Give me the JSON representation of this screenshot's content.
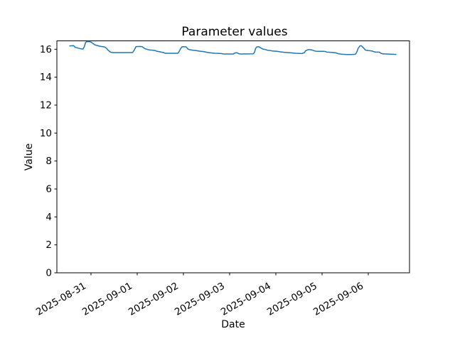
{
  "chart_data": {
    "type": "line",
    "title": "Parameter values",
    "xlabel": "Date",
    "ylabel": "Value",
    "background_color": "#ffffff",
    "line_color": "#1f77b4",
    "axis_color": "#000000",
    "grid": false,
    "x_unit": "days since 2025-08-30 00:00",
    "xlim": [
      0.262,
      7.892
    ],
    "ylim": [
      0,
      16.6
    ],
    "yticks": [
      0,
      2,
      4,
      6,
      8,
      10,
      12,
      14,
      16
    ],
    "xticks": [
      {
        "day": 1,
        "label": "2025-08-31"
      },
      {
        "day": 2,
        "label": "2025-09-01"
      },
      {
        "day": 3,
        "label": "2025-09-02"
      },
      {
        "day": 4,
        "label": "2025-09-03"
      },
      {
        "day": 5,
        "label": "2025-09-04"
      },
      {
        "day": 6,
        "label": "2025-09-05"
      },
      {
        "day": 7,
        "label": "2025-09-06"
      }
    ],
    "x_tick_rotation_deg": 30,
    "series": [
      {
        "name": "Parameter values",
        "color": "#1f77b4",
        "points": [
          [
            0.54,
            16.24
          ],
          [
            0.62,
            16.26
          ],
          [
            0.66,
            16.13
          ],
          [
            0.72,
            16.08
          ],
          [
            0.78,
            16.03
          ],
          [
            0.83,
            16.01
          ],
          [
            0.86,
            16.22
          ],
          [
            0.88,
            16.47
          ],
          [
            0.9,
            16.54
          ],
          [
            0.95,
            16.55
          ],
          [
            1.0,
            16.51
          ],
          [
            1.03,
            16.44
          ],
          [
            1.06,
            16.37
          ],
          [
            1.08,
            16.32
          ],
          [
            1.13,
            16.27
          ],
          [
            1.19,
            16.22
          ],
          [
            1.24,
            16.19
          ],
          [
            1.29,
            16.17
          ],
          [
            1.31,
            16.13
          ],
          [
            1.34,
            16.05
          ],
          [
            1.36,
            15.96
          ],
          [
            1.39,
            15.88
          ],
          [
            1.41,
            15.81
          ],
          [
            1.44,
            15.78
          ],
          [
            1.47,
            15.76
          ],
          [
            1.9,
            15.76
          ],
          [
            1.94,
            15.96
          ],
          [
            1.97,
            16.17
          ],
          [
            1.98,
            16.19
          ],
          [
            2.06,
            16.2
          ],
          [
            2.11,
            16.18
          ],
          [
            2.13,
            16.13
          ],
          [
            2.16,
            16.05
          ],
          [
            2.21,
            16.0
          ],
          [
            2.26,
            15.95
          ],
          [
            2.34,
            15.93
          ],
          [
            2.39,
            15.91
          ],
          [
            2.42,
            15.86
          ],
          [
            2.47,
            15.83
          ],
          [
            2.52,
            15.79
          ],
          [
            2.57,
            15.76
          ],
          [
            2.61,
            15.71
          ],
          [
            2.88,
            15.71
          ],
          [
            2.9,
            15.79
          ],
          [
            2.94,
            16.05
          ],
          [
            2.97,
            16.17
          ],
          [
            3.0,
            16.18
          ],
          [
            3.06,
            16.17
          ],
          [
            3.1,
            16.01
          ],
          [
            3.15,
            15.96
          ],
          [
            3.21,
            15.93
          ],
          [
            3.28,
            15.9
          ],
          [
            3.36,
            15.86
          ],
          [
            3.44,
            15.83
          ],
          [
            3.49,
            15.79
          ],
          [
            3.54,
            15.76
          ],
          [
            3.62,
            15.73
          ],
          [
            3.69,
            15.71
          ],
          [
            3.82,
            15.69
          ],
          [
            3.87,
            15.66
          ],
          [
            4.08,
            15.66
          ],
          [
            4.1,
            15.71
          ],
          [
            4.13,
            15.74
          ],
          [
            4.17,
            15.74
          ],
          [
            4.19,
            15.69
          ],
          [
            4.23,
            15.66
          ],
          [
            4.51,
            15.67
          ],
          [
            4.54,
            15.79
          ],
          [
            4.56,
            16.05
          ],
          [
            4.59,
            16.17
          ],
          [
            4.62,
            16.18
          ],
          [
            4.64,
            16.17
          ],
          [
            4.67,
            16.1
          ],
          [
            4.72,
            16.01
          ],
          [
            4.77,
            15.98
          ],
          [
            4.82,
            15.93
          ],
          [
            4.88,
            15.91
          ],
          [
            4.92,
            15.88
          ],
          [
            5.03,
            15.85
          ],
          [
            5.1,
            15.81
          ],
          [
            5.18,
            15.78
          ],
          [
            5.26,
            15.76
          ],
          [
            5.33,
            15.74
          ],
          [
            5.43,
            15.71
          ],
          [
            5.56,
            15.69
          ],
          [
            5.62,
            15.76
          ],
          [
            5.64,
            15.88
          ],
          [
            5.69,
            15.96
          ],
          [
            5.72,
            15.98
          ],
          [
            5.77,
            15.96
          ],
          [
            5.82,
            15.9
          ],
          [
            5.87,
            15.86
          ],
          [
            5.92,
            15.85
          ],
          [
            6.03,
            15.85
          ],
          [
            6.08,
            15.83
          ],
          [
            6.1,
            15.79
          ],
          [
            6.18,
            15.78
          ],
          [
            6.26,
            15.76
          ],
          [
            6.31,
            15.73
          ],
          [
            6.36,
            15.67
          ],
          [
            6.44,
            15.64
          ],
          [
            6.54,
            15.62
          ],
          [
            6.64,
            15.62
          ],
          [
            6.72,
            15.64
          ],
          [
            6.75,
            15.79
          ],
          [
            6.78,
            16.05
          ],
          [
            6.82,
            16.24
          ],
          [
            6.85,
            16.25
          ],
          [
            6.87,
            16.18
          ],
          [
            6.91,
            16.05
          ],
          [
            6.93,
            15.96
          ],
          [
            6.95,
            15.93
          ],
          [
            7.01,
            15.9
          ],
          [
            7.08,
            15.88
          ],
          [
            7.11,
            15.83
          ],
          [
            7.16,
            15.79
          ],
          [
            7.24,
            15.79
          ],
          [
            7.26,
            15.74
          ],
          [
            7.29,
            15.69
          ],
          [
            7.31,
            15.67
          ],
          [
            7.6,
            15.63
          ]
        ]
      }
    ]
  }
}
